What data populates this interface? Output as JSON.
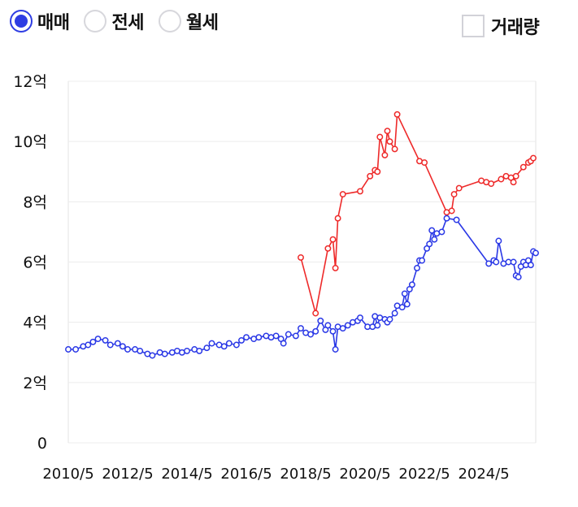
{
  "controls": {
    "radios": [
      {
        "label": "매매",
        "selected": true
      },
      {
        "label": "전세",
        "selected": false
      },
      {
        "label": "월세",
        "selected": false
      }
    ],
    "volume_label": "거래량",
    "volume_checked": false
  },
  "colors": {
    "accent": "#2e3de3",
    "blue_series": "#2a38e6",
    "red_series": "#ee2a2a",
    "grid": "#ececec"
  },
  "chart_data": {
    "type": "line",
    "yticks": [
      {
        "value": 0,
        "label": "0"
      },
      {
        "value": 2,
        "label": "2억"
      },
      {
        "value": 4,
        "label": "4억"
      },
      {
        "value": 6,
        "label": "6억"
      },
      {
        "value": 8,
        "label": "8억"
      },
      {
        "value": 10,
        "label": "10억"
      },
      {
        "value": 12,
        "label": "12억"
      }
    ],
    "xticks": [
      "2010/5",
      "2012/5",
      "2014/5",
      "2016/5",
      "2018/5",
      "2020/5",
      "2022/5",
      "2024/5"
    ],
    "ylim": [
      0,
      12
    ],
    "xlim": [
      "2010-05",
      "2026-02"
    ],
    "grid": true,
    "series": [
      {
        "color": "#ee2a2a",
        "points": [
          [
            "2018-03",
            6.15
          ],
          [
            "2018-09",
            4.3
          ],
          [
            "2019-02",
            6.45
          ],
          [
            "2019-04",
            6.75
          ],
          [
            "2019-05",
            5.8
          ],
          [
            "2019-06",
            7.45
          ],
          [
            "2019-08",
            8.25
          ],
          [
            "2020-03",
            8.35
          ],
          [
            "2020-07",
            8.85
          ],
          [
            "2020-09",
            9.05
          ],
          [
            "2020-10",
            9.0
          ],
          [
            "2020-11",
            10.15
          ],
          [
            "2021-01",
            9.55
          ],
          [
            "2021-02",
            10.35
          ],
          [
            "2021-03",
            10.0
          ],
          [
            "2021-05",
            9.75
          ],
          [
            "2021-06",
            10.9
          ],
          [
            "2022-03",
            9.35
          ],
          [
            "2022-05",
            9.3
          ],
          [
            "2023-02",
            7.65
          ],
          [
            "2023-04",
            7.7
          ],
          [
            "2023-05",
            8.25
          ],
          [
            "2023-07",
            8.45
          ],
          [
            "2024-04",
            8.7
          ],
          [
            "2024-06",
            8.65
          ],
          [
            "2024-08",
            8.6
          ],
          [
            "2024-12",
            8.75
          ],
          [
            "2025-02",
            8.85
          ],
          [
            "2025-04",
            8.8
          ],
          [
            "2025-05",
            8.65
          ],
          [
            "2025-06",
            8.85
          ],
          [
            "2025-09",
            9.15
          ],
          [
            "2025-11",
            9.3
          ],
          [
            "2025-12",
            9.35
          ],
          [
            "2026-01",
            9.45
          ]
        ]
      },
      {
        "color": "#2a38e6",
        "points": [
          [
            "2010-05",
            3.1
          ],
          [
            "2010-08",
            3.1
          ],
          [
            "2010-11",
            3.2
          ],
          [
            "2011-01",
            3.25
          ],
          [
            "2011-03",
            3.35
          ],
          [
            "2011-05",
            3.45
          ],
          [
            "2011-08",
            3.4
          ],
          [
            "2011-10",
            3.25
          ],
          [
            "2012-01",
            3.3
          ],
          [
            "2012-03",
            3.2
          ],
          [
            "2012-05",
            3.1
          ],
          [
            "2012-08",
            3.1
          ],
          [
            "2012-10",
            3.05
          ],
          [
            "2013-01",
            2.95
          ],
          [
            "2013-03",
            2.9
          ],
          [
            "2013-06",
            3.0
          ],
          [
            "2013-08",
            2.95
          ],
          [
            "2013-11",
            3.0
          ],
          [
            "2014-01",
            3.05
          ],
          [
            "2014-03",
            3.0
          ],
          [
            "2014-05",
            3.05
          ],
          [
            "2014-08",
            3.1
          ],
          [
            "2014-10",
            3.05
          ],
          [
            "2015-01",
            3.15
          ],
          [
            "2015-03",
            3.3
          ],
          [
            "2015-06",
            3.25
          ],
          [
            "2015-08",
            3.2
          ],
          [
            "2015-10",
            3.3
          ],
          [
            "2016-01",
            3.25
          ],
          [
            "2016-03",
            3.4
          ],
          [
            "2016-05",
            3.5
          ],
          [
            "2016-08",
            3.45
          ],
          [
            "2016-10",
            3.5
          ],
          [
            "2017-01",
            3.55
          ],
          [
            "2017-03",
            3.5
          ],
          [
            "2017-05",
            3.55
          ],
          [
            "2017-07",
            3.45
          ],
          [
            "2017-08",
            3.3
          ],
          [
            "2017-10",
            3.6
          ],
          [
            "2018-01",
            3.55
          ],
          [
            "2018-03",
            3.8
          ],
          [
            "2018-05",
            3.65
          ],
          [
            "2018-07",
            3.6
          ],
          [
            "2018-09",
            3.7
          ],
          [
            "2018-11",
            4.05
          ],
          [
            "2019-01",
            3.75
          ],
          [
            "2019-02",
            3.9
          ],
          [
            "2019-04",
            3.7
          ],
          [
            "2019-05",
            3.1
          ],
          [
            "2019-06",
            3.85
          ],
          [
            "2019-08",
            3.8
          ],
          [
            "2019-10",
            3.9
          ],
          [
            "2019-12",
            4.0
          ],
          [
            "2020-02",
            4.05
          ],
          [
            "2020-03",
            4.15
          ],
          [
            "2020-06",
            3.85
          ],
          [
            "2020-08",
            3.85
          ],
          [
            "2020-09",
            4.2
          ],
          [
            "2020-10",
            3.9
          ],
          [
            "2020-11",
            4.15
          ],
          [
            "2021-01",
            4.1
          ],
          [
            "2021-02",
            4.0
          ],
          [
            "2021-03",
            4.1
          ],
          [
            "2021-05",
            4.3
          ],
          [
            "2021-06",
            4.55
          ],
          [
            "2021-08",
            4.5
          ],
          [
            "2021-09",
            4.95
          ],
          [
            "2021-10",
            4.6
          ],
          [
            "2021-11",
            5.1
          ],
          [
            "2021-12",
            5.25
          ],
          [
            "2022-02",
            5.8
          ],
          [
            "2022-03",
            6.05
          ],
          [
            "2022-04",
            6.05
          ],
          [
            "2022-06",
            6.45
          ],
          [
            "2022-07",
            6.6
          ],
          [
            "2022-08",
            7.05
          ],
          [
            "2022-09",
            6.75
          ],
          [
            "2022-10",
            6.95
          ],
          [
            "2022-12",
            7.0
          ],
          [
            "2023-02",
            7.45
          ],
          [
            "2023-06",
            7.4
          ],
          [
            "2024-07",
            5.95
          ],
          [
            "2024-09",
            6.05
          ],
          [
            "2024-10",
            6.0
          ],
          [
            "2024-11",
            6.7
          ],
          [
            "2025-01",
            5.95
          ],
          [
            "2025-03",
            6.0
          ],
          [
            "2025-05",
            6.0
          ],
          [
            "2025-06",
            5.55
          ],
          [
            "2025-07",
            5.5
          ],
          [
            "2025-08",
            5.85
          ],
          [
            "2025-09",
            6.0
          ],
          [
            "2025-10",
            5.9
          ],
          [
            "2025-11",
            6.05
          ],
          [
            "2025-12",
            5.9
          ],
          [
            "2026-01",
            6.35
          ],
          [
            "2026-02",
            6.3
          ]
        ]
      }
    ]
  }
}
